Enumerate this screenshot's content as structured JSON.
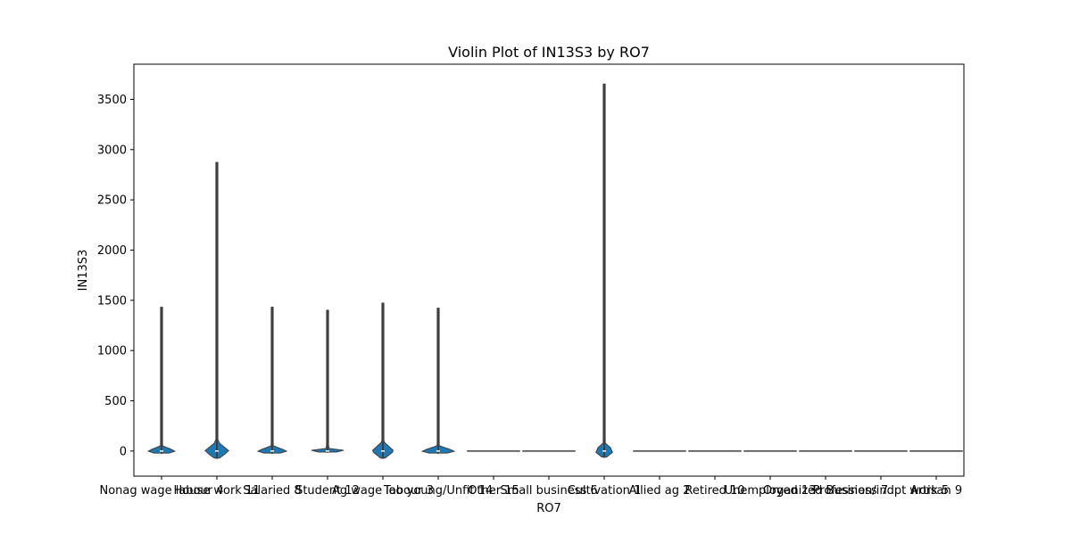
{
  "chart_data": {
    "type": "violin",
    "title": "Violin Plot of IN13S3 by RO7",
    "xlabel": "RO7",
    "ylabel": "IN13S3",
    "ylim": [
      -250,
      3850
    ],
    "yticks": [
      0,
      500,
      1000,
      1500,
      2000,
      2500,
      3000,
      3500
    ],
    "grid": false,
    "color": "#1f77b4",
    "categories": [
      "Nonag wage labour 4",
      "House work 11",
      "Salaried 8",
      "Student 12",
      "Ag wage labour 3",
      "Too young/Unfit 14",
      "Other 15",
      "Small business 6",
      "Cultivation 1",
      "Allied ag 2",
      "Retired 10",
      "Unemployed 13",
      "Organized Business 7",
      "Profession/indpt work 5",
      "Artisan 9"
    ],
    "violins": [
      {
        "min": -20,
        "max": 1430,
        "peak_halfwidth": 0.25,
        "body_low": -40,
        "body_high": 50
      },
      {
        "min": -70,
        "max": 2870,
        "peak_halfwidth": 0.22,
        "body_low": -80,
        "body_high": 90
      },
      {
        "min": -20,
        "max": 1430,
        "peak_halfwidth": 0.27,
        "body_low": -40,
        "body_high": 50
      },
      {
        "min": -10,
        "max": 1400,
        "peak_halfwidth": 0.4,
        "body_low": -15,
        "body_high": 25
      },
      {
        "min": -70,
        "max": 1470,
        "peak_halfwidth": 0.2,
        "body_low": -80,
        "body_high": 90
      },
      {
        "min": -20,
        "max": 1420,
        "peak_halfwidth": 0.3,
        "body_low": -40,
        "body_high": 50
      },
      {
        "min": 0,
        "max": 0,
        "peak_halfwidth": 0.4,
        "body_low": 0,
        "body_high": 0
      },
      {
        "min": 0,
        "max": 0,
        "peak_halfwidth": 0.4,
        "body_low": 0,
        "body_high": 0
      },
      {
        "min": -60,
        "max": 3650,
        "peak_halfwidth": 0.18,
        "body_low": -70,
        "body_high": 80
      },
      {
        "min": 0,
        "max": 0,
        "peak_halfwidth": 0.4,
        "body_low": 0,
        "body_high": 0
      },
      {
        "min": 0,
        "max": 0,
        "peak_halfwidth": 0.4,
        "body_low": 0,
        "body_high": 0
      },
      {
        "min": 0,
        "max": 0,
        "peak_halfwidth": 0.4,
        "body_low": 0,
        "body_high": 0
      },
      {
        "min": 0,
        "max": 0,
        "peak_halfwidth": 0.4,
        "body_low": 0,
        "body_high": 0
      },
      {
        "min": 0,
        "max": 0,
        "peak_halfwidth": 0.4,
        "body_low": 0,
        "body_high": 0
      },
      {
        "min": 0,
        "max": 0,
        "peak_halfwidth": 0.4,
        "body_low": 0,
        "body_high": 0
      }
    ]
  }
}
